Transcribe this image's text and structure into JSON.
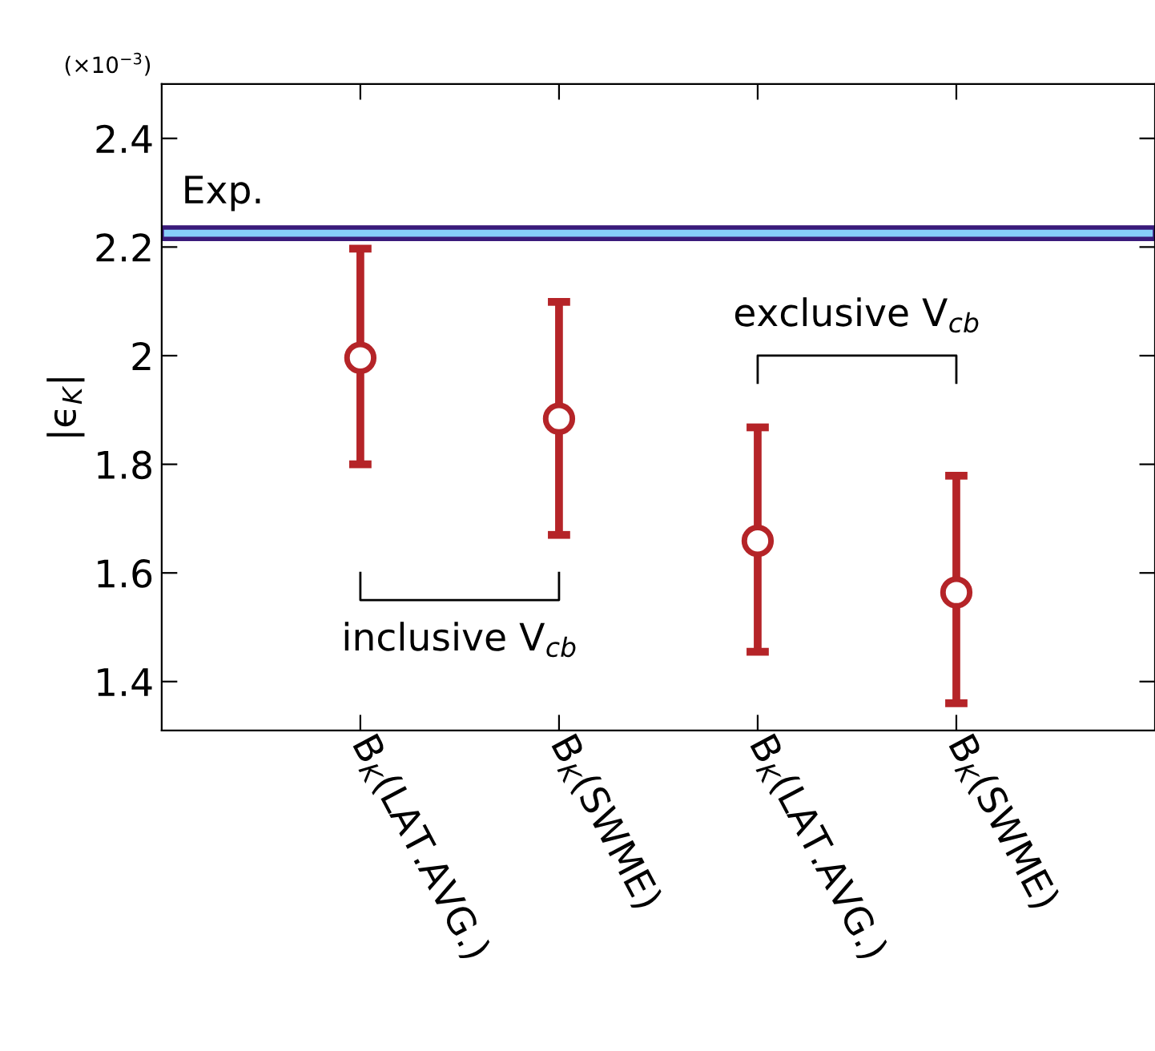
{
  "chart_data": {
    "type": "scatter",
    "ylabel": "|ϵ$_{K}$|",
    "categories": [
      "B$_{K}$(LAT.AVG.)",
      "B$_{K}$(SWME)",
      "B$_{K}$(LAT.AVG.)",
      "B$_{K}$(SWME)"
    ],
    "series": [
      {
        "color": "#b52428",
        "values": [
          1.996,
          1.884,
          1.659,
          1.564
        ],
        "errors": [
          [
            1.8,
            2.197
          ],
          [
            1.67,
            2.099
          ],
          [
            1.455,
            1.868
          ],
          [
            1.36,
            1.779
          ]
        ]
      }
    ],
    "marker": "circle",
    "ylim": [
      1.31,
      2.5
    ],
    "yticks": [
      1.4,
      1.6,
      1.8,
      2,
      2.2,
      2.4
    ],
    "bands": [
      {
        "axis": "y",
        "from": 2.215,
        "to": 2.236,
        "label": "Exp.",
        "color": "#87cefa"
      }
    ],
    "annotations": [
      "(×10$^{−3}$)",
      "inclusive V$_{cb}$",
      "exclusive V$_{cb}$"
    ],
    "grid": false,
    "legend": false
  }
}
